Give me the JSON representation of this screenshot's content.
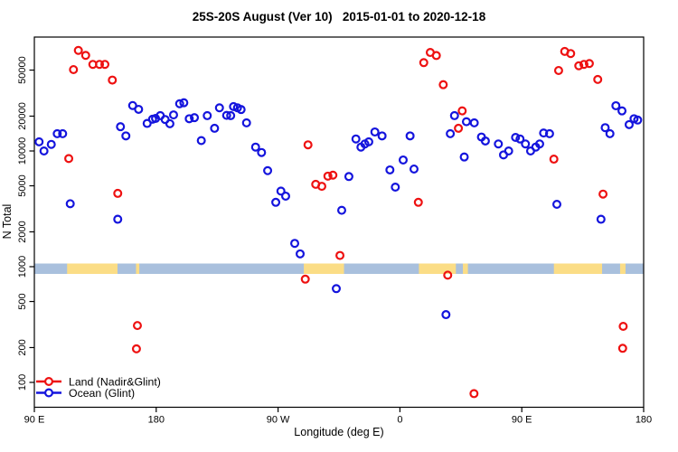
{
  "chart_data": {
    "type": "scatter",
    "title": "25S-20S August (Ver 10)   2015-01-01 to 2020-12-18",
    "xlabel": "Longitude (deg E)",
    "ylabel": "N Total",
    "grid": false,
    "legend_position": "bottom-left",
    "x_axis": {
      "span_deg": 450,
      "ticks_deg": [
        0,
        90,
        180,
        270,
        360,
        450
      ],
      "tick_labels": [
        "90 E",
        "180",
        "90 W",
        "0",
        "90 E",
        "180"
      ]
    },
    "y_axis": {
      "scale": "log",
      "ticks": [
        100,
        200,
        500,
        1000,
        2000,
        5000,
        10000,
        20000,
        50000
      ],
      "range": [
        60,
        93000
      ]
    },
    "map_band": {
      "ocean_color": "#a9c0dd",
      "land_color": "#fbdd86",
      "n_top": 1065,
      "n_bottom": 866,
      "land_segments_deg": [
        [
          24.2,
          61.4
        ],
        [
          75.1,
          77.5
        ],
        [
          199.0,
          228.7
        ],
        [
          284.0,
          311.3
        ],
        [
          316.5,
          320.2
        ],
        [
          383.7,
          419.3
        ],
        [
          432.6,
          436.6
        ]
      ]
    },
    "series": [
      {
        "name": "Land (Nadir&Glint)",
        "color": "#ee1111",
        "points": [
          [
            25.4,
            8600
          ],
          [
            28.9,
            50500
          ],
          [
            32.5,
            74000
          ],
          [
            37.9,
            67000
          ],
          [
            43.2,
            56000
          ],
          [
            48.1,
            56000
          ],
          [
            52.1,
            56000
          ],
          [
            57.6,
            41000
          ],
          [
            61.6,
            4300
          ],
          [
            75.4,
            195
          ],
          [
            76.1,
            310
          ],
          [
            200.1,
            780
          ],
          [
            202.1,
            11300
          ],
          [
            207.8,
            5150
          ],
          [
            212.3,
            4950
          ],
          [
            216.8,
            6060
          ],
          [
            220.5,
            6180
          ],
          [
            225.7,
            1250
          ],
          [
            283.6,
            3600
          ],
          [
            287.6,
            58000
          ],
          [
            292.4,
            71000
          ],
          [
            296.9,
            66800
          ],
          [
            302.0,
            37400
          ],
          [
            305.3,
            845
          ],
          [
            313.2,
            15700
          ],
          [
            316.0,
            22200
          ],
          [
            324.7,
            80
          ],
          [
            383.7,
            8500
          ],
          [
            387.2,
            49600
          ],
          [
            391.7,
            72500
          ],
          [
            396.1,
            69500
          ],
          [
            402.1,
            54500
          ],
          [
            405.9,
            56000
          ],
          [
            409.9,
            57000
          ],
          [
            416.1,
            41500
          ],
          [
            420.0,
            4240
          ],
          [
            434.5,
            197
          ],
          [
            434.9,
            305
          ]
        ]
      },
      {
        "name": "Ocean (Glint)",
        "color": "#1414dd",
        "points": [
          [
            3.5,
            12000
          ],
          [
            7.1,
            10000
          ],
          [
            12.5,
            11400
          ],
          [
            16.9,
            14100
          ],
          [
            20.9,
            14100
          ],
          [
            26.5,
            3500
          ],
          [
            61.6,
            2570
          ],
          [
            63.6,
            16200
          ],
          [
            67.6,
            13500
          ],
          [
            72.6,
            24700
          ],
          [
            77.0,
            22900
          ],
          [
            83.3,
            17300
          ],
          [
            87.3,
            18800
          ],
          [
            89.5,
            19100
          ],
          [
            93.0,
            20200
          ],
          [
            96.6,
            18700
          ],
          [
            100.1,
            17200
          ],
          [
            102.8,
            20500
          ],
          [
            107.3,
            25600
          ],
          [
            110.4,
            26100
          ],
          [
            114.4,
            19000
          ],
          [
            118.2,
            19400
          ],
          [
            123.3,
            12300
          ],
          [
            127.7,
            20200
          ],
          [
            133.1,
            15700
          ],
          [
            136.7,
            23600
          ],
          [
            142.0,
            20300
          ],
          [
            145.0,
            20200
          ],
          [
            147.1,
            24200
          ],
          [
            150.0,
            23600
          ],
          [
            152.7,
            22800
          ],
          [
            156.7,
            17500
          ],
          [
            163.4,
            10800
          ],
          [
            167.8,
            9700
          ],
          [
            172.3,
            6760
          ],
          [
            178.3,
            3600
          ],
          [
            182.1,
            4500
          ],
          [
            185.6,
            4070
          ],
          [
            192.3,
            1590
          ],
          [
            196.3,
            1290
          ],
          [
            223.0,
            646
          ],
          [
            227.0,
            3070
          ],
          [
            232.3,
            6010
          ],
          [
            237.5,
            12700
          ],
          [
            241.2,
            10800
          ],
          [
            244.1,
            11500
          ],
          [
            247.0,
            12000
          ],
          [
            251.5,
            14600
          ],
          [
            256.8,
            13500
          ],
          [
            262.6,
            6860
          ],
          [
            266.6,
            4870
          ],
          [
            272.4,
            8360
          ],
          [
            277.5,
            13500
          ],
          [
            280.4,
            6980
          ],
          [
            304.0,
            385
          ],
          [
            307.2,
            14100
          ],
          [
            310.3,
            20200
          ],
          [
            317.5,
            8870
          ],
          [
            319.1,
            17900
          ],
          [
            324.9,
            17500
          ],
          [
            330.2,
            13200
          ],
          [
            333.1,
            12200
          ],
          [
            342.7,
            11500
          ],
          [
            346.5,
            9250
          ],
          [
            350.3,
            10000
          ],
          [
            355.4,
            13100
          ],
          [
            358.7,
            12700
          ],
          [
            362.7,
            11500
          ],
          [
            366.5,
            10000
          ],
          [
            370.3,
            10800
          ],
          [
            373.2,
            11500
          ],
          [
            376.1,
            14300
          ],
          [
            380.5,
            14100
          ],
          [
            385.9,
            3460
          ],
          [
            418.5,
            2570
          ],
          [
            421.6,
            15900
          ],
          [
            425.1,
            14100
          ],
          [
            429.5,
            24600
          ],
          [
            434.0,
            22200
          ],
          [
            439.3,
            16900
          ],
          [
            442.9,
            19000
          ],
          [
            445.6,
            18500
          ]
        ]
      }
    ]
  }
}
